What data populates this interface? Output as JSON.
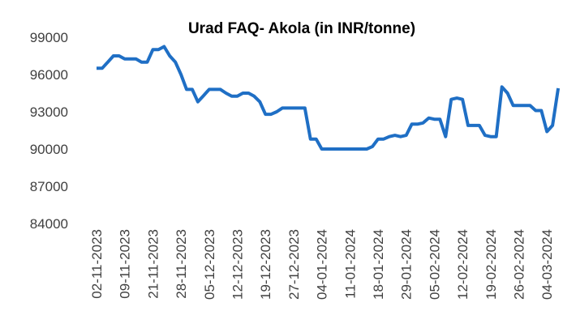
{
  "chart_data": {
    "type": "line",
    "title": "Urad FAQ- Akola (in INR/tonne)",
    "categories": [
      "02-11-2023",
      null,
      null,
      null,
      null,
      "09-11-2023",
      null,
      null,
      null,
      null,
      "21-11-2023",
      null,
      null,
      null,
      null,
      "28-11-2023",
      null,
      null,
      null,
      null,
      "05-12-2023",
      null,
      null,
      null,
      null,
      "12-12-2023",
      null,
      null,
      null,
      null,
      "19-12-2023",
      null,
      null,
      null,
      null,
      "27-12-2023",
      null,
      null,
      null,
      null,
      "04-01-2024",
      null,
      null,
      null,
      null,
      "11-01-2024",
      null,
      null,
      null,
      null,
      "18-01-2024",
      null,
      null,
      null,
      null,
      "29-01-2024",
      null,
      null,
      null,
      null,
      "05-02-2024",
      null,
      null,
      null,
      null,
      "12-02-2024",
      null,
      null,
      null,
      null,
      "19-02-2024",
      null,
      null,
      null,
      null,
      "26-02-2024",
      null,
      null,
      null,
      null,
      "04-03-2024",
      null,
      null
    ],
    "series": [
      {
        "color": "#1f6fc5",
        "values": [
          96500,
          96500,
          97000,
          97500,
          97500,
          97250,
          97250,
          97250,
          97000,
          97000,
          98000,
          98000,
          98250,
          97500,
          97000,
          96000,
          94800,
          94800,
          93800,
          94300,
          94800,
          94800,
          94800,
          94500,
          94250,
          94250,
          94500,
          94500,
          94250,
          93800,
          92800,
          92800,
          93000,
          93300,
          93300,
          93300,
          93300,
          93300,
          90800,
          90800,
          90000,
          90000,
          90000,
          90000,
          90000,
          90000,
          90000,
          90000,
          90000,
          90200,
          90800,
          90800,
          91000,
          91100,
          91000,
          91100,
          92000,
          92000,
          92100,
          92500,
          92400,
          92400,
          91000,
          94000,
          94100,
          94000,
          91900,
          91900,
          91900,
          91100,
          91000,
          91000,
          95000,
          94500,
          93500,
          93500,
          93500,
          93500,
          93100,
          93100,
          91400,
          91900,
          94900
        ]
      }
    ],
    "ylim": [
      84000,
      99000
    ],
    "yticks": [
      84000,
      87000,
      90000,
      93000,
      96000,
      99000
    ]
  }
}
